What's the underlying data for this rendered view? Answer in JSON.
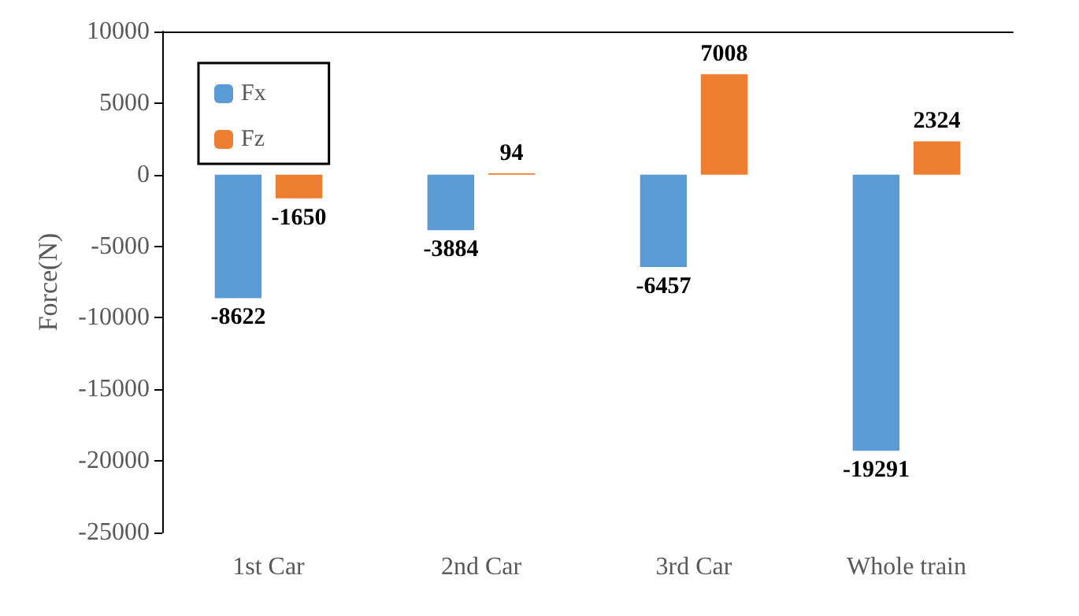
{
  "chart_data": {
    "type": "bar",
    "ylabel": "Force(N)",
    "categories": [
      "1st Car",
      "2nd Car",
      "3rd Car",
      "Whole train"
    ],
    "series": [
      {
        "name": "Fx",
        "color": "#5b9bd5",
        "values": [
          -8622,
          -3884,
          -6457,
          -19291
        ]
      },
      {
        "name": "Fz",
        "color": "#ed7d31",
        "values": [
          -1650,
          94,
          7008,
          2324
        ]
      }
    ],
    "ylim": [
      -25000,
      10000
    ],
    "yticks": [
      -25000,
      -20000,
      -15000,
      -10000,
      -5000,
      0,
      5000,
      10000
    ],
    "data_labels": true,
    "legend": "top left",
    "grid": false
  }
}
